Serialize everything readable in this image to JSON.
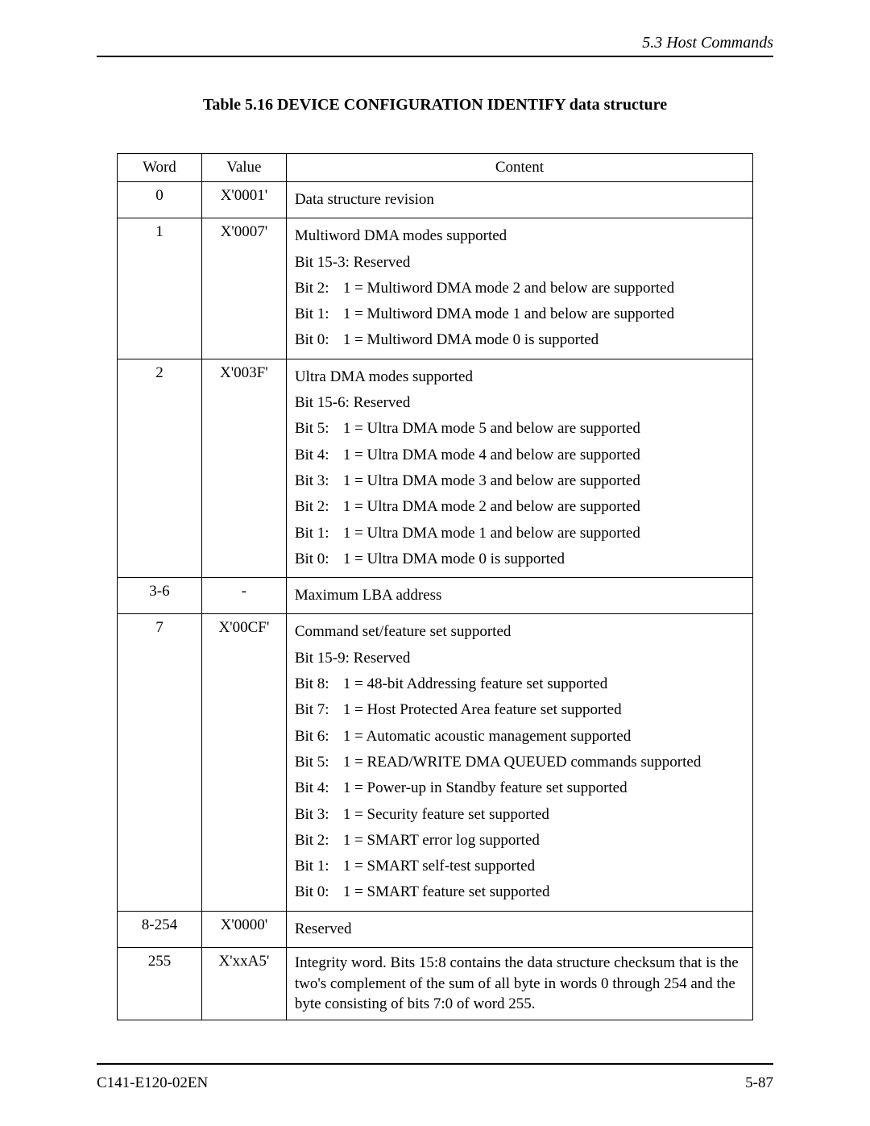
{
  "header": {
    "section": "5.3  Host Commands"
  },
  "caption": "Table 5.16  DEVICE CONFIGURATION IDENTIFY data structure",
  "columns": {
    "word": "Word",
    "value": "Value",
    "content": "Content"
  },
  "rows": [
    {
      "word": "0",
      "value": "X'0001'",
      "lines": [
        "Data structure revision"
      ],
      "bits": []
    },
    {
      "word": "1",
      "value": "X'0007'",
      "lines": [
        "Multiword DMA modes supported",
        "Bit 15-3: Reserved"
      ],
      "bits": [
        {
          "label": "Bit 2:",
          "desc": "1 = Multiword DMA mode 2 and below are supported"
        },
        {
          "label": "Bit 1:",
          "desc": "1 = Multiword DMA mode 1 and below are supported"
        },
        {
          "label": "Bit 0:",
          "desc": "1 = Multiword DMA mode 0 is supported"
        }
      ]
    },
    {
      "word": "2",
      "value": "X'003F'",
      "lines": [
        "Ultra DMA modes supported",
        "Bit 15-6: Reserved"
      ],
      "bits": [
        {
          "label": "Bit 5:",
          "desc": "1 = Ultra DMA mode 5 and below are supported"
        },
        {
          "label": "Bit 4:",
          "desc": "1 = Ultra DMA mode 4 and below are supported"
        },
        {
          "label": "Bit 3:",
          "desc": "1 = Ultra DMA mode 3 and below are supported"
        },
        {
          "label": "Bit 2:",
          "desc": "1 = Ultra DMA mode 2 and below are supported"
        },
        {
          "label": "Bit 1:",
          "desc": "1 = Ultra DMA mode 1 and below are supported"
        },
        {
          "label": "Bit 0:",
          "desc": "1 = Ultra DMA mode 0 is supported"
        }
      ]
    },
    {
      "word": "3-6",
      "value": "-",
      "lines": [
        "Maximum LBA address"
      ],
      "bits": []
    },
    {
      "word": "7",
      "value": "X'00CF'",
      "lines": [
        "Command set/feature set supported",
        "Bit 15-9: Reserved"
      ],
      "bits": [
        {
          "label": "Bit 8:",
          "desc": "1 = 48-bit Addressing feature set supported"
        },
        {
          "label": "Bit 7:",
          "desc": "1 = Host Protected Area feature set supported"
        },
        {
          "label": "Bit 6:",
          "desc": "1 = Automatic acoustic management supported"
        },
        {
          "label": "Bit 5:",
          "desc": "1 = READ/WRITE DMA QUEUED commands supported"
        },
        {
          "label": "Bit 4:",
          "desc": "1 = Power-up in Standby feature set supported"
        },
        {
          "label": "Bit 3:",
          "desc": "1 = Security feature set supported"
        },
        {
          "label": "Bit 2:",
          "desc": "1 = SMART error log supported"
        },
        {
          "label": "Bit 1:",
          "desc": "1 = SMART self-test supported"
        },
        {
          "label": "Bit 0:",
          "desc": "1 = SMART feature set supported"
        }
      ]
    },
    {
      "word": "8-254",
      "value": "X'0000'",
      "lines": [
        "Reserved"
      ],
      "bits": []
    },
    {
      "word": "255",
      "value": "X'xxA5'",
      "lines": [
        "Integrity word.  Bits 15:8 contains the data structure checksum that is the two's complement of the sum of all byte in words 0 through 254 and the byte consisting of bits 7:0 of word 255."
      ],
      "bits": []
    }
  ],
  "footer": {
    "doc_id": "C141-E120-02EN",
    "page": "5-87"
  }
}
